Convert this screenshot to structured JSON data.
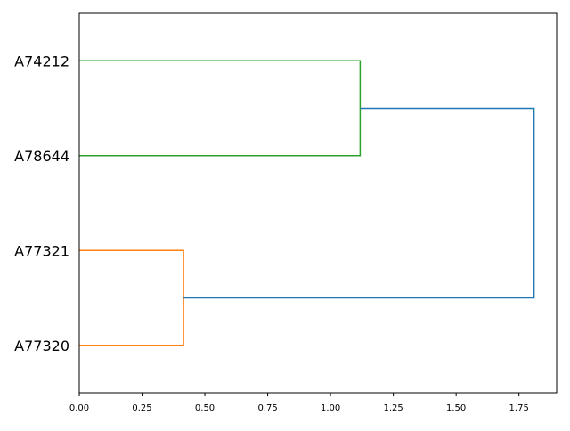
{
  "chart_data": {
    "type": "dendrogram",
    "orientation": "right",
    "title": "",
    "xlabel": "",
    "ylabel": "",
    "xlim": [
      0,
      1.9
    ],
    "xticks": [
      "0.00",
      "0.25",
      "0.50",
      "0.75",
      "1.00",
      "1.25",
      "1.50",
      "1.75"
    ],
    "xtick_values": [
      0,
      0.25,
      0.5,
      0.75,
      1.0,
      1.25,
      1.5,
      1.75
    ],
    "leaves": [
      "A74212",
      "A78644",
      "A77321",
      "A77320"
    ],
    "links": [
      {
        "children": [
          "A77321",
          "A77320"
        ],
        "height": 0.415,
        "color": "#ff7f0e"
      },
      {
        "children": [
          "A74212",
          "A78644"
        ],
        "height": 1.118,
        "color": "#2ca02c"
      },
      {
        "children": [
          "cluster(A74212,A78644)",
          "cluster(A77321,A77320)"
        ],
        "height": 1.81,
        "color": "#1f77b4"
      }
    ],
    "grid": false
  }
}
